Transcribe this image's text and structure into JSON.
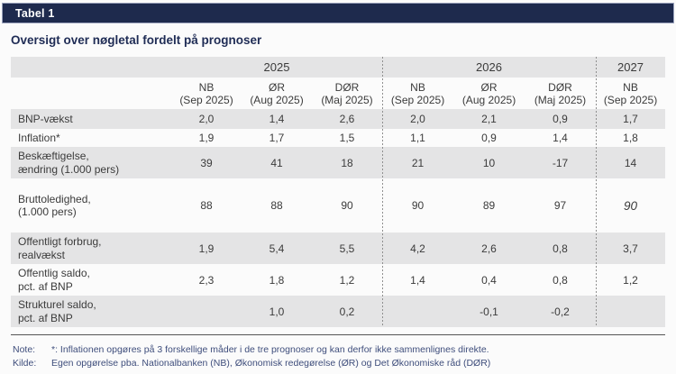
{
  "titlebar": {
    "label": "Tabel 1"
  },
  "title": "Oversigt over nøgletal fordelt på prognoser",
  "table": {
    "years": [
      "2025",
      "2026",
      "2027"
    ],
    "columns": [
      {
        "source": "NB",
        "date": "(Sep 2025)"
      },
      {
        "source": "ØR",
        "date": "(Aug 2025)"
      },
      {
        "source": "DØR",
        "date": "(Maj 2025)"
      },
      {
        "source": "NB",
        "date": "(Sep 2025)"
      },
      {
        "source": "ØR",
        "date": "(Aug 2025)"
      },
      {
        "source": "DØR",
        "date": "(Maj 2025)"
      },
      {
        "source": "NB",
        "date": "(Sep 2025)"
      }
    ],
    "rows": [
      {
        "label1": "BNP-vækst",
        "label2": "",
        "values": [
          "2,0",
          "1,4",
          "2,6",
          "2,0",
          "2,1",
          "0,9",
          "1,7"
        ]
      },
      {
        "label1": "Inflation*",
        "label2": "",
        "values": [
          "1,9",
          "1,7",
          "1,5",
          "1,1",
          "0,9",
          "1,4",
          "1,8"
        ]
      },
      {
        "label1": "Beskæftigelse,",
        "label2": "ændring (1.000 pers)",
        "values": [
          "39",
          "41",
          "18",
          "21",
          "10",
          "-17",
          "14"
        ]
      },
      {
        "label1": "Bruttoledighed,",
        "label2": "(1.000 pers)",
        "values": [
          "88",
          "88",
          "90",
          "90",
          "89",
          "97",
          "90"
        ],
        "last_value_italic": true
      },
      {
        "label1": "Offentligt forbrug,",
        "label2": "realvækst",
        "values": [
          "1,9",
          "5,4",
          "5,5",
          "4,2",
          "2,6",
          "0,8",
          "3,7"
        ]
      },
      {
        "label1": "Offentlig saldo,",
        "label2": "pct. af BNP",
        "values": [
          "2,3",
          "1,8",
          "1,2",
          "1,4",
          "0,4",
          "0,8",
          "1,2"
        ]
      },
      {
        "label1": "Strukturel saldo,",
        "label2": "pct. af BNP",
        "values": [
          "",
          "1,0",
          "0,2",
          "",
          "-0,1",
          "-0,2",
          ""
        ]
      }
    ]
  },
  "notes": {
    "note_label": "Note:",
    "note_text": "*: Inflationen opgøres på 3 forskellige måder i de tre prognoser og kan derfor ikke sammenlignes direkte.",
    "source_label": "Kilde:",
    "source_text": "Egen opgørelse pba. Nationalbanken (NB), Økonomisk redegørelse (ØR) og Det Økonomiske råd (DØR)"
  },
  "colors": {
    "navy": "#1e2a4d",
    "titlebar_border": "#9ba3bd",
    "row_gray": "#e4e4e5",
    "note_blue": "#3f4e7c",
    "body_text": "#3b3b3b"
  }
}
